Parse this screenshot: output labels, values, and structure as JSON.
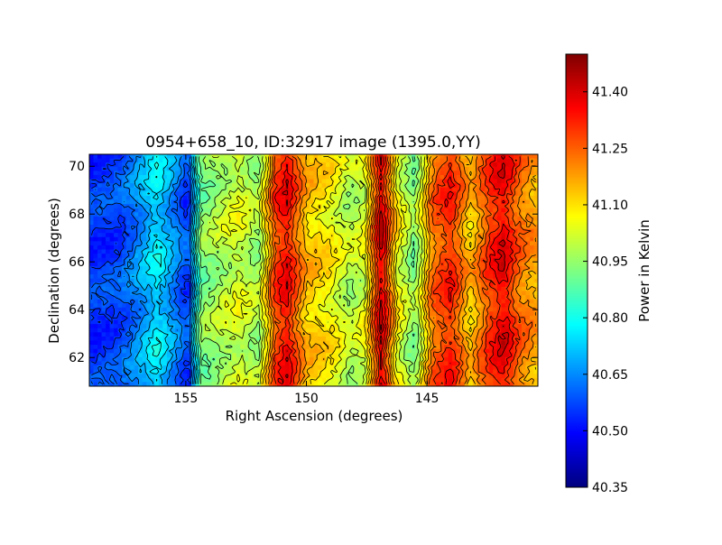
{
  "chart_data": {
    "type": "heatmap",
    "title": "0954+658_10, ID:32917 image (1395.0,YY)",
    "xlabel": "Right Ascension (degrees)",
    "ylabel": "Declination (degrees)",
    "x_inverted": true,
    "xlim": [
      159.0,
      140.4
    ],
    "ylim": [
      60.8,
      70.5
    ],
    "x_ticks": [
      155,
      150,
      145
    ],
    "x_tick_labels": [
      "155",
      "150",
      "145"
    ],
    "y_ticks": [
      62,
      64,
      66,
      68,
      70
    ],
    "y_tick_labels": [
      "62",
      "64",
      "66",
      "68",
      "70"
    ],
    "contours": true,
    "colormap": "jet",
    "colorbar": {
      "label": "Power in Kelvin",
      "range": [
        40.35,
        41.5
      ],
      "ticks": [
        40.35,
        40.5,
        40.65,
        40.8,
        40.95,
        41.1,
        41.25,
        41.4
      ],
      "tick_labels": [
        "40.35",
        "40.50",
        "40.65",
        "40.80",
        "40.95",
        "41.10",
        "41.25",
        "41.40"
      ]
    },
    "column_profile": {
      "ra": [
        158.8,
        157.8,
        157.0,
        156.2,
        155.4,
        154.9,
        154.4,
        153.6,
        152.8,
        152.0,
        151.3,
        150.8,
        150.0,
        149.0,
        148.2,
        147.6,
        146.9,
        146.2,
        145.5,
        144.8,
        144.0,
        143.2,
        142.4,
        141.8,
        141.2,
        140.5
      ],
      "power": [
        40.55,
        40.57,
        40.65,
        40.76,
        40.64,
        40.55,
        40.92,
        40.98,
        41.03,
        40.96,
        41.28,
        41.36,
        41.14,
        41.08,
        40.98,
        41.03,
        41.4,
        41.06,
        40.93,
        41.23,
        41.32,
        41.13,
        41.3,
        41.38,
        41.24,
        41.17
      ]
    }
  }
}
